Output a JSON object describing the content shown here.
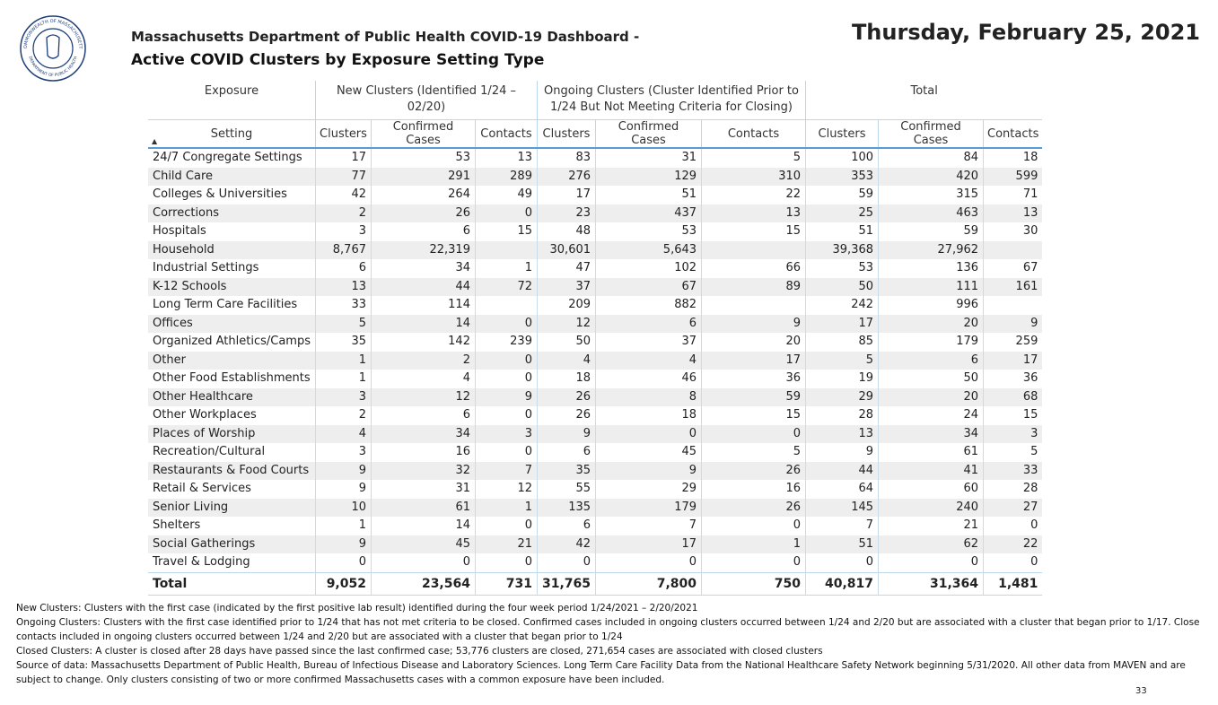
{
  "seal": {
    "top_text": "COMMONWEALTH OF MASSACHUSETTS",
    "bottom_text": "DEPARTMENT OF PUBLIC HEALTH"
  },
  "header": {
    "title": "Massachusetts Department of Public Health COVID-19 Dashboard -",
    "subtitle": "Active COVID Clusters by Exposure Setting Type",
    "date": "Thursday, February 25, 2021"
  },
  "table": {
    "group_headers": [
      "Exposure",
      "New Clusters (Identified 1/24 – 02/20)",
      "Ongoing Clusters (Cluster Identified Prior to 1/24 But Not Meeting Criteria for Closing)",
      "Total"
    ],
    "columns": [
      "Setting",
      "Clusters",
      "Confirmed Cases",
      "Contacts",
      "Clusters",
      "Confirmed Cases",
      "Contacts",
      "Clusters",
      "Confirmed Cases",
      "Contacts"
    ],
    "rows": [
      [
        "24/7 Congregate Settings",
        "17",
        "53",
        "13",
        "83",
        "31",
        "5",
        "100",
        "84",
        "18"
      ],
      [
        "Child Care",
        "77",
        "291",
        "289",
        "276",
        "129",
        "310",
        "353",
        "420",
        "599"
      ],
      [
        "Colleges & Universities",
        "42",
        "264",
        "49",
        "17",
        "51",
        "22",
        "59",
        "315",
        "71"
      ],
      [
        "Corrections",
        "2",
        "26",
        "0",
        "23",
        "437",
        "13",
        "25",
        "463",
        "13"
      ],
      [
        "Hospitals",
        "3",
        "6",
        "15",
        "48",
        "53",
        "15",
        "51",
        "59",
        "30"
      ],
      [
        "Household",
        "8,767",
        "22,319",
        null,
        "30,601",
        "5,643",
        null,
        "39,368",
        "27,962",
        null
      ],
      [
        "Industrial Settings",
        "6",
        "34",
        "1",
        "47",
        "102",
        "66",
        "53",
        "136",
        "67"
      ],
      [
        "K-12 Schools",
        "13",
        "44",
        "72",
        "37",
        "67",
        "89",
        "50",
        "111",
        "161"
      ],
      [
        "Long Term Care Facilities",
        "33",
        "114",
        null,
        "209",
        "882",
        null,
        "242",
        "996",
        null
      ],
      [
        "Offices",
        "5",
        "14",
        "0",
        "12",
        "6",
        "9",
        "17",
        "20",
        "9"
      ],
      [
        "Organized Athletics/Camps",
        "35",
        "142",
        "239",
        "50",
        "37",
        "20",
        "85",
        "179",
        "259"
      ],
      [
        "Other",
        "1",
        "2",
        "0",
        "4",
        "4",
        "17",
        "5",
        "6",
        "17"
      ],
      [
        "Other Food Establishments",
        "1",
        "4",
        "0",
        "18",
        "46",
        "36",
        "19",
        "50",
        "36"
      ],
      [
        "Other Healthcare",
        "3",
        "12",
        "9",
        "26",
        "8",
        "59",
        "29",
        "20",
        "68"
      ],
      [
        "Other Workplaces",
        "2",
        "6",
        "0",
        "26",
        "18",
        "15",
        "28",
        "24",
        "15"
      ],
      [
        "Places of Worship",
        "4",
        "34",
        "3",
        "9",
        "0",
        "0",
        "13",
        "34",
        "3"
      ],
      [
        "Recreation/Cultural",
        "3",
        "16",
        "0",
        "6",
        "45",
        "5",
        "9",
        "61",
        "5"
      ],
      [
        "Restaurants & Food Courts",
        "9",
        "32",
        "7",
        "35",
        "9",
        "26",
        "44",
        "41",
        "33"
      ],
      [
        "Retail & Services",
        "9",
        "31",
        "12",
        "55",
        "29",
        "16",
        "64",
        "60",
        "28"
      ],
      [
        "Senior Living",
        "10",
        "61",
        "1",
        "135",
        "179",
        "26",
        "145",
        "240",
        "27"
      ],
      [
        "Shelters",
        "1",
        "14",
        "0",
        "6",
        "7",
        "0",
        "7",
        "21",
        "0"
      ],
      [
        "Social Gatherings",
        "9",
        "45",
        "21",
        "42",
        "17",
        "1",
        "51",
        "62",
        "22"
      ],
      [
        "Travel & Lodging",
        "0",
        "0",
        "0",
        "0",
        "0",
        "0",
        "0",
        "0",
        "0"
      ]
    ],
    "total": [
      "Total",
      "9,052",
      "23,564",
      "731",
      "31,765",
      "7,800",
      "750",
      "40,817",
      "31,364",
      "1,481"
    ]
  },
  "footnotes": [
    "New Clusters: Clusters with the first case (indicated by the first positive lab result) identified during the four week period 1/24/2021 – 2/20/2021",
    "Ongoing Clusters: Clusters with the first case identified prior to 1/24 that has not met criteria to be closed.  Confirmed cases included in ongoing clusters occurred between 1/24 and 2/20  but are associated with a cluster that began prior to 1/17. Close contacts included in ongoing clusters occurred between 1/24 and 2/20 but are associated with a cluster that began prior to 1/24",
    "Closed Clusters: A cluster is closed after 28 days have passed since the last confirmed case; 53,776 clusters are closed, 271,654 cases are associated with closed clusters",
    "Source of data: Massachusetts Department of Public Health, Bureau of Infectious Disease and Laboratory Sciences. Long Term Care Facility Data from the National Healthcare Safety Network beginning 5/31/2020.  All other data from MAVEN and are subject to change. Only clusters consisting of two or more confirmed Massachusetts cases with a common exposure have been included."
  ],
  "page_number": "33"
}
